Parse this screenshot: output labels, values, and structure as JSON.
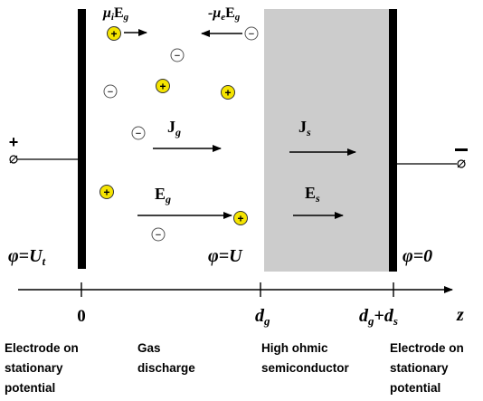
{
  "flux": {
    "ion_mu": "μ",
    "ion_sub": "i",
    "ion_E": "E",
    "ion_g": "g",
    "electron_prefix": "-μ",
    "electron_sub": "e",
    "electron_E": "E",
    "electron_g": "g"
  },
  "current": {
    "gas_main": "J",
    "gas_sub": "g",
    "semi_main": "J",
    "semi_sub": "s"
  },
  "field": {
    "gas_main": "E",
    "gas_sub": "g",
    "semi_main": "E",
    "semi_sub": "s"
  },
  "potential": {
    "left_phi": "φ",
    "left_eq": "=",
    "left_U": "U",
    "left_sub": "t",
    "mid_text": "φ=U",
    "right_text": "φ=0"
  },
  "terminals": {
    "positive_sign": "+",
    "negative_sign": "−",
    "terminal_symbol": "⌀"
  },
  "axis": {
    "tick_0": "0",
    "tick_dg_main": "d",
    "tick_dg_sub": "g",
    "tick_sum_main1": "d",
    "tick_sum_sub1": "g",
    "tick_sum_plus": "+",
    "tick_sum_main2": "d",
    "tick_sum_sub2": "s",
    "axis_var": "z"
  },
  "charges": {
    "positive_symbol": "+",
    "negative_symbol": "−"
  },
  "regions": {
    "left_electrode": [
      "Electrode on",
      "stationary",
      "potential"
    ],
    "gas": [
      "Gas",
      "discharge"
    ],
    "semiconductor": [
      "High ohmic",
      "semiconductor"
    ],
    "right_electrode": [
      "Electrode on",
      "stationary",
      "potential"
    ]
  },
  "colors": {
    "positive_fill": "#f5e400",
    "negative_fill": "#ffffff",
    "semiconductor_fill": "#cccccc",
    "electrode": "#000000"
  }
}
